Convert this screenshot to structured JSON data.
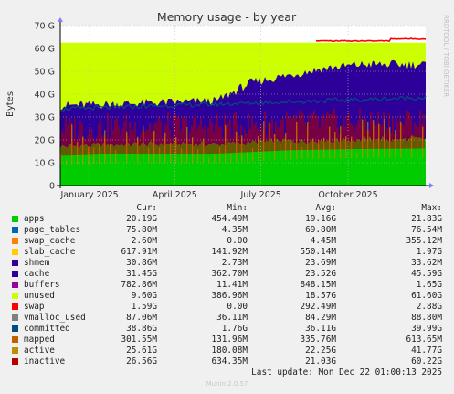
{
  "chart_data": {
    "type": "area",
    "title": "Memory usage - by year",
    "ylabel": "Bytes",
    "watermark": "RRDTOOL / TOBI OETIKER",
    "ylim": [
      0,
      70
    ],
    "y_unit": "G",
    "y_ticks": [
      0,
      10,
      20,
      30,
      40,
      50,
      60,
      70
    ],
    "y_tick_labels": [
      "0",
      "10 G",
      "20 G",
      "30 G",
      "40 G",
      "50 G",
      "60 G",
      "70 G"
    ],
    "x_labels": [
      {
        "date": "2025-01-01",
        "label": "January 2025"
      },
      {
        "date": "2025-04-01",
        "label": "April 2025"
      },
      {
        "date": "2025-07-01",
        "label": "July 2025"
      },
      {
        "date": "2025-10-01",
        "label": "October 2025"
      }
    ],
    "x_range": [
      "2024-12-01",
      "2025-12-22"
    ],
    "grid": true,
    "total_ram_g": 62.5,
    "series_approx": [
      {
        "name": "apps",
        "x": [
          "2024-12-01",
          "2025-02-15",
          "2025-05-15",
          "2025-08-01",
          "2025-10-15",
          "2025-12-22"
        ],
        "y_g": [
          17,
          18,
          18,
          19.5,
          20,
          20.2
        ]
      },
      {
        "name": "cache",
        "x": [
          "2024-12-01",
          "2025-05-15",
          "2025-06-20",
          "2025-09-01",
          "2025-10-15",
          "2025-12-22"
        ],
        "y_g": [
          35,
          37,
          45,
          51,
          53,
          53
        ]
      },
      {
        "name": "unused",
        "x": [
          "2024-12-01",
          "2025-12-22"
        ],
        "y_g": [
          62.5,
          62.5
        ]
      }
    ],
    "legend": {
      "headers": [
        "Cur:",
        "Min:",
        "Avg:",
        "Max:"
      ],
      "rows": [
        {
          "name": "apps",
          "color": "#00cc00",
          "cur": "20.19G",
          "min": "454.49M",
          "avg": "19.16G",
          "max": "21.83G"
        },
        {
          "name": "page_tables",
          "color": "#0066b3",
          "cur": "75.80M",
          "min": "4.35M",
          "avg": "69.80M",
          "max": "76.54M"
        },
        {
          "name": "swap_cache",
          "color": "#ff8000",
          "cur": "2.60M",
          "min": "0.00",
          "avg": "4.45M",
          "max": "355.12M"
        },
        {
          "name": "slab_cache",
          "color": "#ffcc00",
          "cur": "617.91M",
          "min": "141.92M",
          "avg": "550.14M",
          "max": "1.97G"
        },
        {
          "name": "shmem",
          "color": "#330099",
          "cur": "30.86M",
          "min": "2.73M",
          "avg": "23.69M",
          "max": "33.62M"
        },
        {
          "name": "cache",
          "color": "#2c0099",
          "cur": "31.45G",
          "min": "362.70M",
          "avg": "23.52G",
          "max": "45.59G"
        },
        {
          "name": "buffers",
          "color": "#990099",
          "cur": "782.86M",
          "min": "11.41M",
          "avg": "848.15M",
          "max": "1.65G"
        },
        {
          "name": "unused",
          "color": "#ccff00",
          "cur": "9.60G",
          "min": "386.96M",
          "avg": "18.57G",
          "max": "61.60G"
        },
        {
          "name": "swap",
          "color": "#ff0000",
          "cur": "1.59G",
          "min": "0.00",
          "avg": "292.49M",
          "max": "2.88G"
        },
        {
          "name": "vmalloc_used",
          "color": "#808080",
          "cur": "87.06M",
          "min": "36.11M",
          "avg": "84.29M",
          "max": "88.80M"
        },
        {
          "name": "committed",
          "color": "#004d80",
          "cur": "38.86G",
          "min": "1.76G",
          "avg": "36.11G",
          "max": "39.99G"
        },
        {
          "name": "mapped",
          "color": "#c06000",
          "cur": "301.55M",
          "min": "131.96M",
          "avg": "335.76M",
          "max": "613.65M"
        },
        {
          "name": "active",
          "color": "#b89000",
          "cur": "25.61G",
          "min": "180.08M",
          "avg": "22.25G",
          "max": "41.77G"
        },
        {
          "name": "inactive",
          "color": "#b30000",
          "cur": "26.56G",
          "min": "634.35M",
          "avg": "21.03G",
          "max": "60.22G"
        }
      ]
    }
  },
  "footer": {
    "last_update": "Last update: Mon Dec 22 01:00:13 2025",
    "munin_version": "Munin 2.0.57"
  },
  "colors": {
    "background": "#f0f0f0",
    "plot_background": "#ffffff",
    "grid": "#d8b0b0",
    "axis": "#000000"
  }
}
